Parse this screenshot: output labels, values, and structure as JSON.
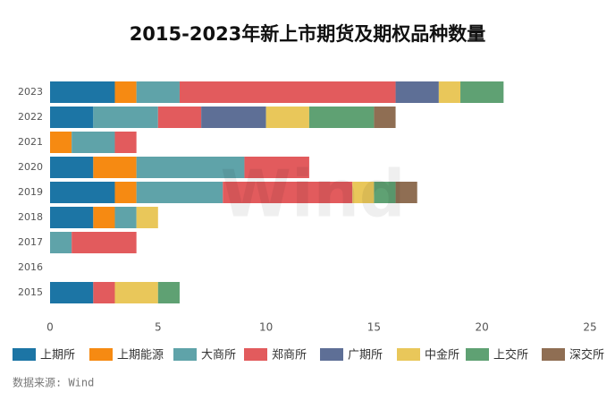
{
  "chart_data": {
    "type": "bar",
    "orientation": "horizontal",
    "stacked": true,
    "title": "2015-2023年新上市期货及期权品种数量",
    "categories": [
      "2023",
      "2022",
      "2021",
      "2020",
      "2019",
      "2018",
      "2017",
      "2016",
      "2015"
    ],
    "series": [
      {
        "name": "上期所",
        "color": "#1c75a5",
        "values": [
          3,
          2,
          0,
          2,
          3,
          2,
          0,
          0,
          2
        ]
      },
      {
        "name": "上期能源",
        "color": "#f68a12",
        "values": [
          1,
          0,
          1,
          2,
          1,
          1,
          0,
          0,
          0
        ]
      },
      {
        "name": "大商所",
        "color": "#5fa3a9",
        "values": [
          2,
          3,
          2,
          5,
          4,
          1,
          1,
          0,
          0
        ]
      },
      {
        "name": "郑商所",
        "color": "#e25b5d",
        "values": [
          10,
          2,
          1,
          3,
          6,
          0,
          3,
          0,
          1
        ]
      },
      {
        "name": "广期所",
        "color": "#5e6f96",
        "values": [
          2,
          3,
          0,
          0,
          0,
          0,
          0,
          0,
          0
        ]
      },
      {
        "name": "中金所",
        "color": "#e9c75a",
        "values": [
          1,
          2,
          0,
          0,
          1,
          1,
          0,
          0,
          2
        ]
      },
      {
        "name": "上交所",
        "color": "#5fa173",
        "values": [
          2,
          3,
          0,
          0,
          1,
          0,
          0,
          0,
          1
        ]
      },
      {
        "name": "深交所",
        "color": "#8f6e53",
        "values": [
          0,
          1,
          0,
          0,
          1,
          0,
          0,
          0,
          0
        ]
      }
    ],
    "xlim": [
      0,
      25
    ],
    "xticks": [
      0,
      5,
      10,
      15,
      20,
      25
    ],
    "legend": "bottom",
    "watermark": "Wind",
    "source": "数据来源: Wind"
  }
}
